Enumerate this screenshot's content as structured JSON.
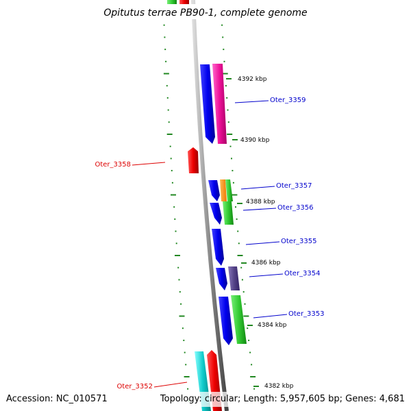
{
  "title": "Opitutus terrae PB90-1, complete genome",
  "accession_text": "Accession: NC_010571",
  "topology_text": "Topology: circular; Length: 5,957,605 bp; Genes: 4,681",
  "kbp_markers": [
    "4392 kbp",
    "4390 kbp",
    "4388 kbp",
    "4386 kbp",
    "4384 kbp",
    "4382 kbp"
  ],
  "gene_labels": [
    {
      "label": "Oter_3359",
      "color": "#0000cc"
    },
    {
      "label": "Oter_3358",
      "color": "#dd0000"
    },
    {
      "label": "Oter_3357",
      "color": "#0000cc"
    },
    {
      "label": "Oter_3356",
      "color": "#0000cc"
    },
    {
      "label": "Oter_3355",
      "color": "#0000cc"
    },
    {
      "label": "Oter_3354",
      "color": "#0000cc"
    },
    {
      "label": "Oter_3353",
      "color": "#0000cc"
    },
    {
      "label": "Oter_3352",
      "color": "#dd0000"
    }
  ],
  "colors": {
    "backbone": "#8a8a8a",
    "forward_cds": "#0000ee",
    "reverse_cds": "#ee0000",
    "tick_dots": "#228822",
    "magenta": "#ee1199",
    "green": "#33cc33",
    "orange": "#ff8800",
    "slate": "#554488",
    "cyan": "#11cccc"
  }
}
